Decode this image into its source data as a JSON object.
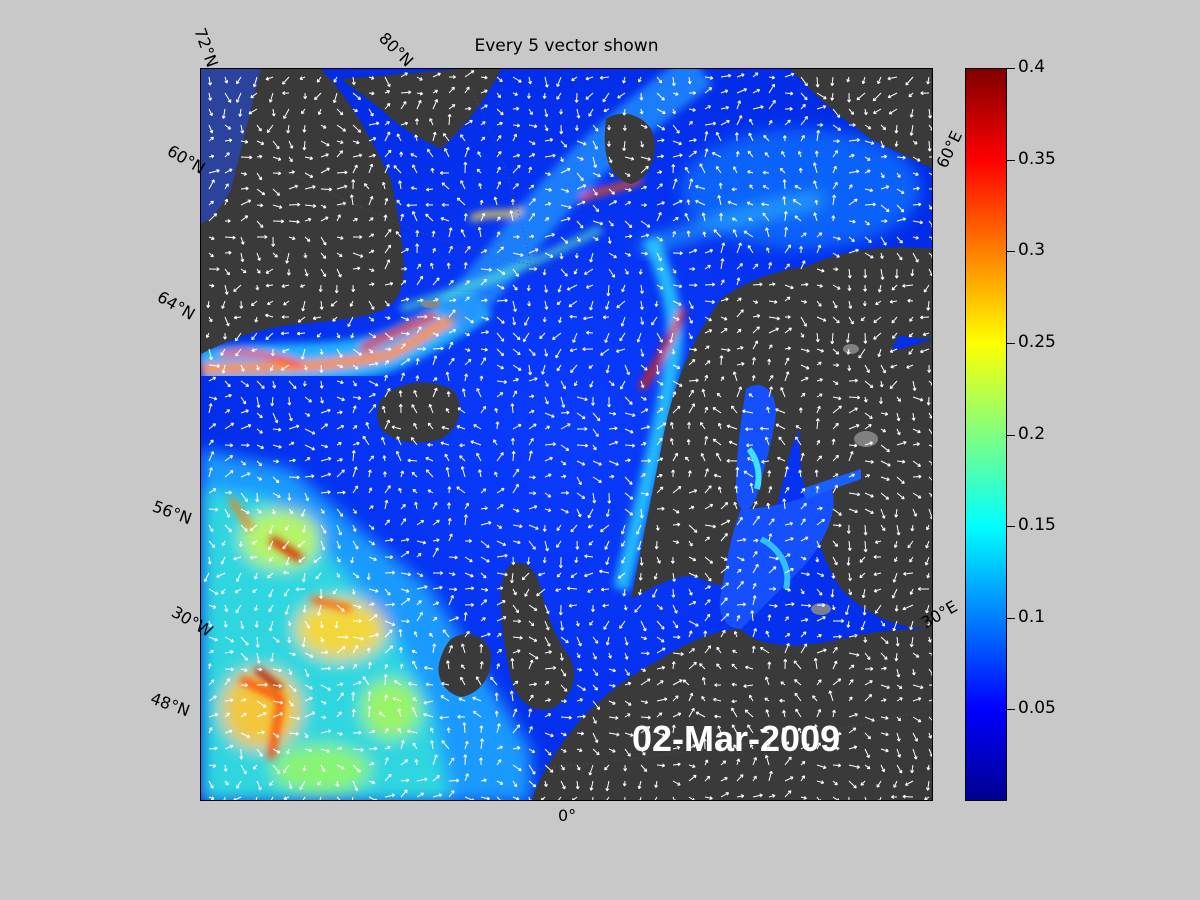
{
  "figure": {
    "title": "Every 5 vector shown",
    "date": "02-Mar-2009"
  },
  "map": {
    "lat_labels": [
      "72°N",
      "80°N",
      "60°N",
      "64°N",
      "56°N",
      "30°W",
      "48°N"
    ],
    "lon_labels": [
      "60°E",
      "30°E",
      "0°"
    ],
    "land_color": "#3a3a3a",
    "vector_color": "#ffffff"
  },
  "colorbar": {
    "ticks": [
      "0.4",
      "0.35",
      "0.3",
      "0.25",
      "0.2",
      "0.15",
      "0.1",
      "0.05"
    ],
    "min": 0,
    "max": 0.4,
    "colormap": "jet"
  },
  "colors": {
    "background": "#c8c8c8",
    "date_text": "#ffffff"
  }
}
